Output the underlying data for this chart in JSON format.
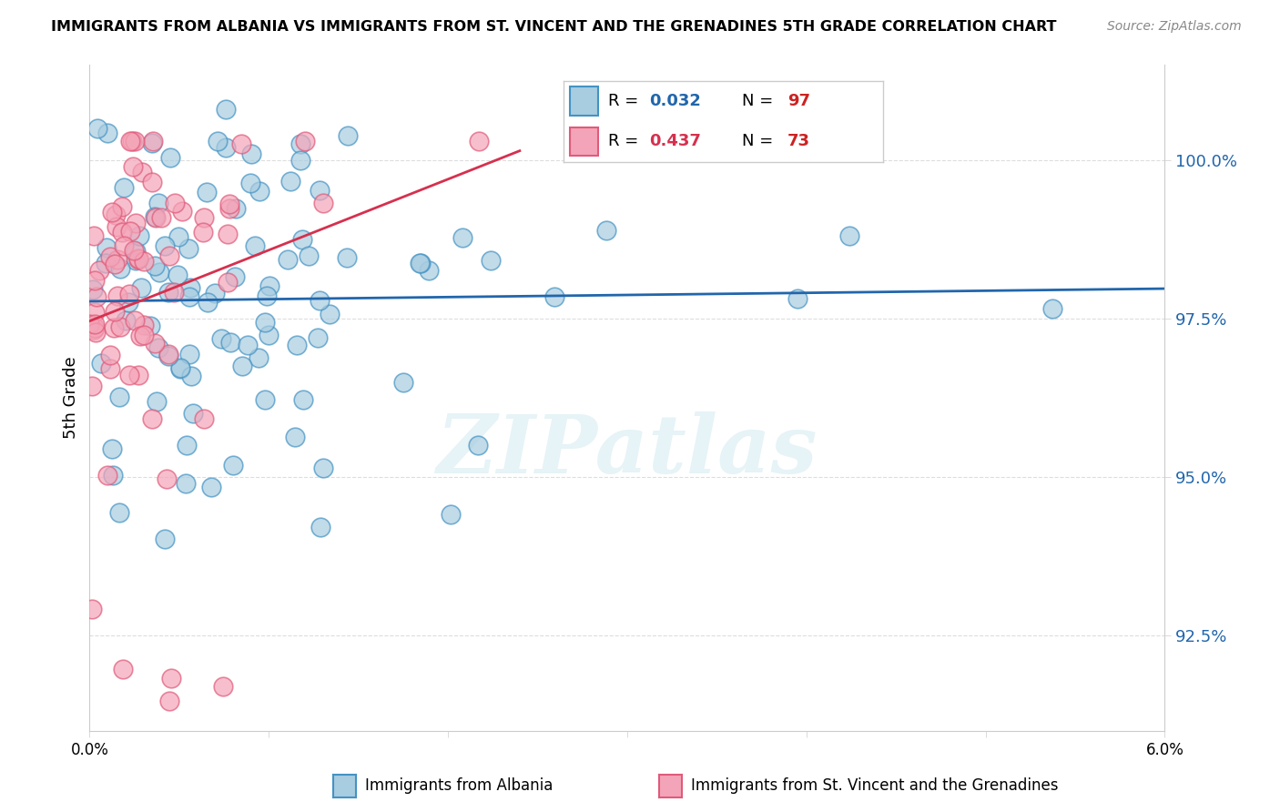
{
  "title": "IMMIGRANTS FROM ALBANIA VS IMMIGRANTS FROM ST. VINCENT AND THE GRENADINES 5TH GRADE CORRELATION CHART",
  "source": "Source: ZipAtlas.com",
  "ylabel": "5th Grade",
  "xlim": [
    0.0,
    6.0
  ],
  "ylim": [
    91.0,
    101.5
  ],
  "yticks": [
    92.5,
    95.0,
    97.5,
    100.0
  ],
  "ytick_labels": [
    "92.5%",
    "95.0%",
    "97.5%",
    "100.0%"
  ],
  "albania_R": 0.032,
  "albania_N": 97,
  "stvincent_R": 0.437,
  "stvincent_N": 73,
  "albania_face_color": "#a8cce0",
  "albania_edge_color": "#4393c3",
  "albania_line_color": "#2166ac",
  "stvincent_face_color": "#f4a4b8",
  "stvincent_edge_color": "#e05a7a",
  "stvincent_line_color": "#d6304e",
  "legend_albania": "Immigrants from Albania",
  "legend_stvincent": "Immigrants from St. Vincent and the Grenadines",
  "watermark": "ZIPatlas",
  "bg_color": "#ffffff",
  "grid_color": "#dddddd",
  "r_value_color": "#2166ac",
  "n_value_color": "#cc2222"
}
